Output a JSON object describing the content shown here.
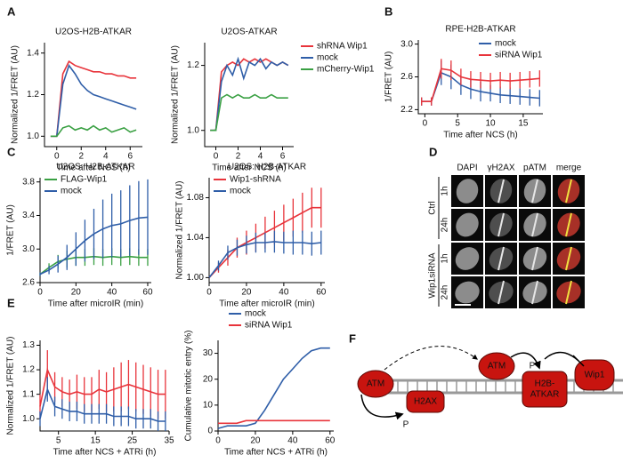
{
  "panels": [
    "A",
    "B",
    "C",
    "D",
    "E",
    "F"
  ],
  "chart_data": [
    {
      "type": "line",
      "title": "U2OS-H2B-ATKAR",
      "x_label": "Time after NCS (h)",
      "y_label": "Normalized 1/FRET (AU)",
      "x": [
        -0.5,
        0,
        0.5,
        1,
        1.5,
        2,
        2.5,
        3,
        3.5,
        4,
        4.5,
        5,
        5.5,
        6,
        6.5
      ],
      "xlim": [
        -1,
        7
      ],
      "xticks": [
        0,
        2,
        4,
        6
      ],
      "ylim": [
        0.95,
        1.45
      ],
      "yticks": [
        {
          "value": 1,
          "label": "1.0"
        },
        1.2,
        1.4
      ],
      "series": [
        {
          "color": "#e8343b",
          "values": [
            1.0,
            1.0,
            1.3,
            1.36,
            1.34,
            1.33,
            1.32,
            1.31,
            1.31,
            1.3,
            1.3,
            1.29,
            1.29,
            1.28,
            1.28
          ]
        },
        {
          "color": "#2f5ea8",
          "values": [
            1.0,
            1.0,
            1.25,
            1.34,
            1.3,
            1.25,
            1.22,
            1.2,
            1.19,
            1.18,
            1.17,
            1.16,
            1.15,
            1.14,
            1.13
          ]
        },
        {
          "color": "#3aa043",
          "values": [
            1.0,
            1.0,
            1.04,
            1.05,
            1.03,
            1.04,
            1.03,
            1.05,
            1.03,
            1.04,
            1.02,
            1.03,
            1.04,
            1.02,
            1.03
          ]
        }
      ]
    },
    {
      "type": "line",
      "title": "U2OS-ATKAR",
      "x_label": "Time after NCS (h)",
      "y_label": "Normalized 1/FRET (AU)",
      "legend": "right",
      "x": [
        -0.5,
        0,
        0.5,
        1,
        1.5,
        2,
        2.5,
        3,
        3.5,
        4,
        4.5,
        5,
        5.5,
        6,
        6.5
      ],
      "xlim": [
        -1,
        7
      ],
      "xticks": [
        0,
        2,
        4,
        6
      ],
      "ylim": [
        0.95,
        1.27
      ],
      "yticks": [
        {
          "value": 1,
          "label": "1.0"
        },
        1.2
      ],
      "series": [
        {
          "name": "shRNA Wip1",
          "color": "#e8343b",
          "values": [
            1.0,
            1.0,
            1.18,
            1.2,
            1.21,
            1.2,
            1.22,
            1.21,
            1.22,
            1.21,
            1.22,
            1.21,
            1.2,
            1.21,
            1.2
          ]
        },
        {
          "name": "mock",
          "color": "#2f5ea8",
          "values": [
            1.0,
            1.0,
            1.15,
            1.2,
            1.17,
            1.22,
            1.16,
            1.21,
            1.2,
            1.22,
            1.19,
            1.21,
            1.2,
            1.21,
            1.2
          ]
        },
        {
          "name": "mCherry-Wip1",
          "color": "#3aa043",
          "values": [
            1.0,
            1.0,
            1.1,
            1.11,
            1.1,
            1.11,
            1.1,
            1.1,
            1.11,
            1.1,
            1.1,
            1.11,
            1.1,
            1.1,
            1.1
          ]
        }
      ]
    },
    {
      "type": "line",
      "title": "RPE-H2B-ATKAR",
      "x_label": "Time after NCS (h)",
      "y_label": "1/FRET (AU)",
      "legend": "upper right",
      "x": [
        -0.5,
        1,
        2.5,
        4,
        5.5,
        7,
        8.5,
        10,
        11.5,
        13,
        14.5,
        16,
        17.5
      ],
      "xlim": [
        -1,
        18
      ],
      "xticks": [
        0,
        5,
        10,
        15
      ],
      "ylim": [
        2.15,
        3.05
      ],
      "yticks": [
        2.2,
        2.6,
        {
          "value": 3,
          "label": "3.0"
        }
      ],
      "series": [
        {
          "name": "mock",
          "color": "#2f5ea8",
          "values": [
            2.3,
            2.3,
            2.65,
            2.6,
            2.5,
            2.45,
            2.42,
            2.4,
            2.38,
            2.37,
            2.36,
            2.35,
            2.34
          ],
          "errors": [
            0.05,
            0.05,
            0.15,
            0.15,
            0.12,
            0.12,
            0.12,
            0.1,
            0.1,
            0.1,
            0.1,
            0.1,
            0.1
          ]
        },
        {
          "name": "siRNA Wip1",
          "color": "#e8343b",
          "values": [
            2.3,
            2.3,
            2.7,
            2.68,
            2.6,
            2.57,
            2.56,
            2.55,
            2.56,
            2.55,
            2.56,
            2.57,
            2.58
          ],
          "errors": [
            0.05,
            0.05,
            0.12,
            0.12,
            0.1,
            0.1,
            0.1,
            0.1,
            0.1,
            0.1,
            0.1,
            0.1,
            0.1
          ]
        }
      ]
    },
    {
      "type": "line",
      "title": "U2OS: H2B-ATKAR",
      "x_label": "Time after microIR (min)",
      "y_label": "1/FRET (AU)",
      "legend": "upper left",
      "x": [
        0,
        5,
        10,
        15,
        20,
        25,
        30,
        35,
        40,
        45,
        50,
        55,
        60
      ],
      "xlim": [
        0,
        62
      ],
      "xticks": [
        0,
        20,
        40,
        60
      ],
      "ylim": [
        2.6,
        3.85
      ],
      "yticks": [
        2.6,
        {
          "value": 3,
          "label": "3.0"
        },
        3.4,
        3.8
      ],
      "series": [
        {
          "name": "FLAG-Wip1",
          "color": "#3aa043",
          "values": [
            2.7,
            2.78,
            2.85,
            2.88,
            2.9,
            2.9,
            2.91,
            2.9,
            2.91,
            2.9,
            2.91,
            2.9,
            2.9
          ],
          "errors": [
            0.02,
            0.05,
            0.08,
            0.1,
            0.1,
            0.1,
            0.1,
            0.1,
            0.1,
            0.1,
            0.1,
            0.1,
            0.1
          ]
        },
        {
          "name": "mock",
          "color": "#2f5ea8",
          "values": [
            2.7,
            2.75,
            2.82,
            2.9,
            3.0,
            3.1,
            3.18,
            3.24,
            3.28,
            3.3,
            3.34,
            3.37,
            3.38
          ],
          "errors": [
            0.02,
            0.05,
            0.1,
            0.15,
            0.2,
            0.25,
            0.3,
            0.35,
            0.38,
            0.4,
            0.42,
            0.44,
            0.45
          ]
        }
      ]
    },
    {
      "type": "line",
      "title": "U2OS: H2B-ATKAR",
      "x_label": "Time after microIR (min)",
      "y_label": "Normalized 1/FRET (AU)",
      "legend": "upper left",
      "x": [
        0,
        5,
        10,
        15,
        20,
        25,
        30,
        35,
        40,
        45,
        50,
        55,
        60
      ],
      "xlim": [
        0,
        62
      ],
      "xticks": [
        0,
        20,
        40,
        60
      ],
      "ylim": [
        0.995,
        1.1
      ],
      "yticks": [
        {
          "value": 1,
          "label": "1.00"
        },
        1.04,
        1.08
      ],
      "series": [
        {
          "name": "Wip1-shRNA",
          "color": "#e8343b",
          "values": [
            1.0,
            1.01,
            1.02,
            1.03,
            1.035,
            1.04,
            1.045,
            1.05,
            1.055,
            1.06,
            1.065,
            1.07,
            1.07
          ],
          "errors": [
            0,
            0.005,
            0.008,
            0.01,
            0.012,
            0.014,
            0.016,
            0.017,
            0.018,
            0.019,
            0.02,
            0.02,
            0.02
          ]
        },
        {
          "name": "mock",
          "color": "#2f5ea8",
          "values": [
            1.0,
            1.012,
            1.025,
            1.03,
            1.033,
            1.035,
            1.035,
            1.036,
            1.035,
            1.035,
            1.035,
            1.034,
            1.035
          ],
          "errors": [
            0,
            0.005,
            0.007,
            0.008,
            0.009,
            0.01,
            0.01,
            0.011,
            0.011,
            0.012,
            0.012,
            0.012,
            0.012
          ]
        }
      ]
    },
    {
      "type": "line",
      "x_label": "Time after NCS + ATRi (h)",
      "y_label": "Normalized 1/FRET (AU)",
      "x": [
        0,
        2,
        4,
        6,
        8,
        10,
        12,
        14,
        16,
        18,
        20,
        22,
        24,
        26,
        28,
        30,
        32,
        34
      ],
      "xlim": [
        0,
        35
      ],
      "xticks": [
        5,
        15,
        25,
        35
      ],
      "ylim": [
        0.95,
        1.32
      ],
      "yticks": [
        {
          "value": 1,
          "label": "1.0"
        },
        1.1,
        1.2,
        1.3
      ],
      "series": [
        {
          "color": "#e8343b",
          "values": [
            1.05,
            1.2,
            1.13,
            1.11,
            1.1,
            1.11,
            1.1,
            1.1,
            1.12,
            1.11,
            1.12,
            1.13,
            1.14,
            1.13,
            1.12,
            1.11,
            1.1,
            1.1
          ],
          "errors": [
            0.05,
            0.08,
            0.06,
            0.06,
            0.06,
            0.07,
            0.07,
            0.07,
            0.08,
            0.08,
            0.09,
            0.1,
            0.1,
            0.1,
            0.1,
            0.1,
            0.1,
            0.1
          ]
        },
        {
          "color": "#2f5ea8",
          "values": [
            1.0,
            1.12,
            1.05,
            1.04,
            1.03,
            1.03,
            1.02,
            1.02,
            1.02,
            1.02,
            1.01,
            1.01,
            1.01,
            1.0,
            1.0,
            1.0,
            0.99,
            0.99
          ],
          "errors": [
            0.03,
            0.05,
            0.04,
            0.04,
            0.04,
            0.04,
            0.04,
            0.04,
            0.04,
            0.04,
            0.04,
            0.04,
            0.04,
            0.04,
            0.04,
            0.04,
            0.04,
            0.04
          ]
        }
      ]
    },
    {
      "type": "line",
      "x_label": "Time after NCS + ATRi (h)",
      "y_label": "Cumulative mitotic entry (%)",
      "legend": "above",
      "x": [
        0,
        5,
        10,
        15,
        20,
        25,
        30,
        35,
        40,
        45,
        50,
        55,
        60
      ],
      "xlim": [
        0,
        62
      ],
      "xticks": [
        0,
        20,
        40,
        60
      ],
      "ylim": [
        0,
        35
      ],
      "yticks": [
        0,
        10,
        20,
        30
      ],
      "series": [
        {
          "name": "mock",
          "color": "#2f5ea8",
          "values": [
            1,
            2,
            2,
            2,
            3,
            8,
            14,
            20,
            24,
            28,
            31,
            32,
            32
          ]
        },
        {
          "name": "siRNA Wip1",
          "color": "#e8343b",
          "values": [
            3,
            3,
            3,
            4,
            4,
            4,
            4,
            4,
            4,
            4,
            4,
            4,
            4
          ]
        }
      ]
    }
  ],
  "microscopy": {
    "columns": [
      "DAPI",
      "γH2AX",
      "pATM",
      "merge"
    ],
    "groups": [
      {
        "label": "Ctrl",
        "rows": [
          "1h",
          "24h"
        ]
      },
      {
        "label": "Wip1siRNA",
        "rows": [
          "1h",
          "24h"
        ]
      }
    ]
  },
  "diagram": {
    "nodes": [
      {
        "lines": [
          "ATM"
        ]
      },
      {
        "lines": [
          "H2AX"
        ]
      },
      {
        "lines": [
          "ATM"
        ]
      },
      {
        "lines": [
          "H2B-",
          "ATKAR"
        ]
      },
      {
        "lines": [
          "Wip1"
        ]
      }
    ],
    "phospho": [
      "P",
      "P"
    ]
  }
}
